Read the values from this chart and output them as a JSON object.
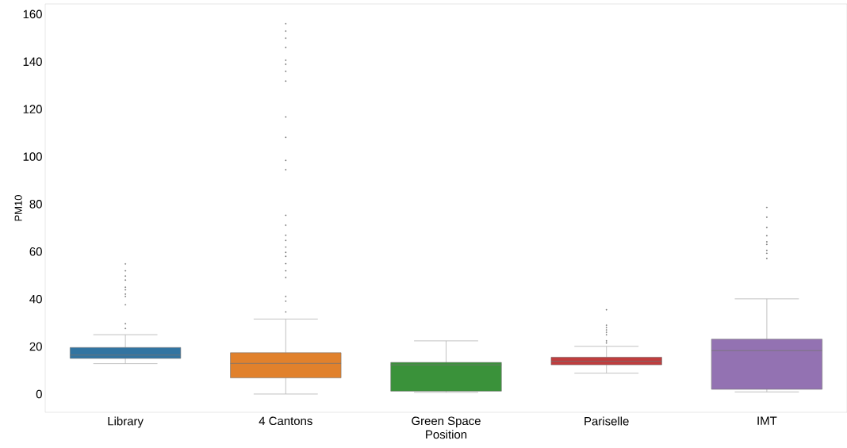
{
  "chart_data": {
    "type": "box",
    "xlabel": "Position",
    "ylabel": "PM10",
    "categories": [
      "Library",
      "4 Cantons",
      "Green Space",
      "Pariselle",
      "IMT"
    ],
    "colors": [
      "#3274a1",
      "#e1812c",
      "#3a923a",
      "#c03d3e",
      "#9372b2"
    ],
    "ylim": [
      -7.7,
      164.3
    ],
    "yticks": [
      0,
      20,
      40,
      60,
      80,
      100,
      120,
      140,
      160
    ],
    "boxes": [
      {
        "low": 12.8,
        "q1": 15.0,
        "median": 16.4,
        "q3": 19.6,
        "high": 25.0,
        "outliers": [
          54.8,
          51.9,
          49.7,
          48.0,
          45.0,
          43.9,
          42.1,
          41.1,
          37.6,
          29.6,
          27.6
        ]
      },
      {
        "low": 0,
        "q1": 6.8,
        "median": 12.9,
        "q3": 17.4,
        "high": 31.6,
        "outliers": [
          156.0,
          152.9,
          149.9,
          146.0,
          140.6,
          138.9,
          135.9,
          131.8,
          116.7,
          108.1,
          98.4,
          94.5,
          75.3,
          71.1,
          66.9,
          64.7,
          61.9,
          59.7,
          58.0,
          54.9,
          51.9,
          49.1,
          41.1,
          39.1,
          34.6
        ]
      },
      {
        "low": 0.7,
        "q1": 1.2,
        "median": 12.3,
        "q3": 13.3,
        "high": 22.4
      },
      {
        "low": 8.8,
        "q1": 12.3,
        "median": 13.8,
        "q3": 15.5,
        "high": 20.1,
        "outliers": [
          35.5,
          29.0,
          28.0,
          27.0,
          26.0,
          25.0,
          22.4,
          21.5
        ]
      },
      {
        "low": 0.9,
        "q1": 2.0,
        "median": 18.3,
        "q3": 23.1,
        "high": 40.1,
        "outliers": [
          78.6,
          74.5,
          70.2,
          66.7,
          64.1,
          63.0,
          60.5,
          59.3,
          57.1
        ]
      }
    ]
  }
}
